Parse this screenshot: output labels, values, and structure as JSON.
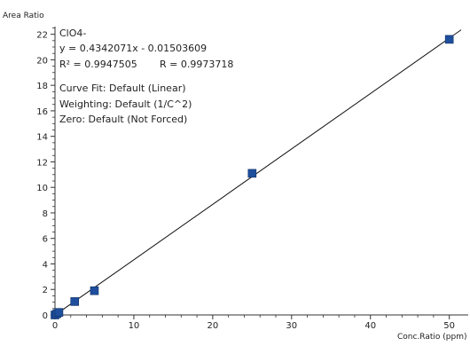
{
  "chart_data": {
    "type": "scatter",
    "ylabel": "Area Ratio",
    "xlabel": "Conc.Ratio (ppm)",
    "xlim": [
      0,
      51.5
    ],
    "ylim": [
      0,
      22.6
    ],
    "x_ticks": [
      0,
      10,
      20,
      30,
      40,
      50
    ],
    "y_ticks": [
      0,
      2,
      4,
      6,
      8,
      10,
      12,
      14,
      16,
      18,
      20,
      22
    ],
    "grid": false,
    "annotation": {
      "compound": "ClO4-",
      "equation": "y = 0.4342071x - 0.01503609",
      "r_squared": "R² = 0.9947505",
      "r": "R = 0.9973718",
      "curve_fit": "Curve Fit: Default (Linear)",
      "weighting": "Weighting: Default (1/C^2)",
      "zero": "Zero: Default (Not Forced)"
    },
    "fit": {
      "slope": 0.4342071,
      "intercept": -0.01503609
    },
    "points": [
      {
        "x": 0,
        "y": 0
      },
      {
        "x": 0.25,
        "y": 0.1
      },
      {
        "x": 0.5,
        "y": 0.2
      },
      {
        "x": 2.5,
        "y": 1.05
      },
      {
        "x": 5,
        "y": 1.9
      },
      {
        "x": 25,
        "y": 11.1
      },
      {
        "x": 50,
        "y": 21.6
      }
    ],
    "marker_color": "#1f4e9c"
  }
}
